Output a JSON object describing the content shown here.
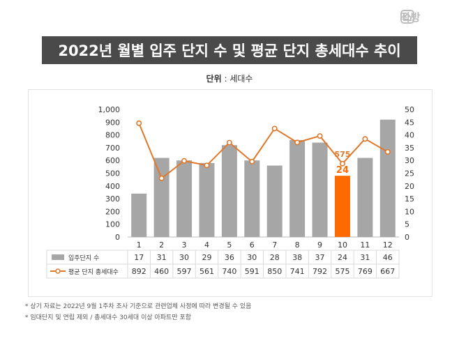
{
  "brand": {
    "name": "직방",
    "icon": "house-logo-icon"
  },
  "title": "2022년 월별 입주 단지 수 및 평균 단지 총세대수 추이",
  "unit": {
    "label": "단위",
    "sep": " : ",
    "value": "세대수"
  },
  "legend": {
    "bar": "입주단지 수",
    "line": "평균 단지 총세대수"
  },
  "chart_data": {
    "type": "bar+line",
    "categories": [
      "1",
      "2",
      "3",
      "4",
      "5",
      "6",
      "7",
      "8",
      "9",
      "10",
      "11",
      "12"
    ],
    "series": [
      {
        "name": "입주단지 수",
        "type": "bar",
        "axis": "right",
        "values": [
          17,
          31,
          30,
          29,
          36,
          30,
          28,
          38,
          37,
          24,
          31,
          46
        ]
      },
      {
        "name": "평균 단지 총세대수",
        "type": "line",
        "axis": "left",
        "values": [
          892,
          460,
          597,
          561,
          740,
          591,
          850,
          741,
          792,
          575,
          769,
          667
        ]
      }
    ],
    "highlight": {
      "index": 9,
      "bar_label": "24",
      "line_label": "575"
    },
    "y_left": {
      "min": 0,
      "max": 1000,
      "step": 100,
      "ticks": [
        "0",
        "100",
        "200",
        "300",
        "400",
        "500",
        "600",
        "700",
        "800",
        "900",
        "1,000"
      ]
    },
    "y_right": {
      "min": 0,
      "max": 50,
      "step": 5,
      "ticks": [
        "0",
        "5",
        "10",
        "15",
        "20",
        "25",
        "30",
        "35",
        "40",
        "45",
        "50"
      ]
    },
    "colors": {
      "bar": "#a6a6a6",
      "highlight": "#ff6a00",
      "line": "#e0782b",
      "marker_fill": "#ffffff"
    },
    "grid": false
  },
  "notes": [
    "* 상기 자료는 2022년 9월 1주차 조사 기준으로 관련업체 사정에 따라 변경될 수 있음",
    "* 임대단지 및 연립 제외 / 총세대수 30세대 이상 아파트만 포함"
  ]
}
